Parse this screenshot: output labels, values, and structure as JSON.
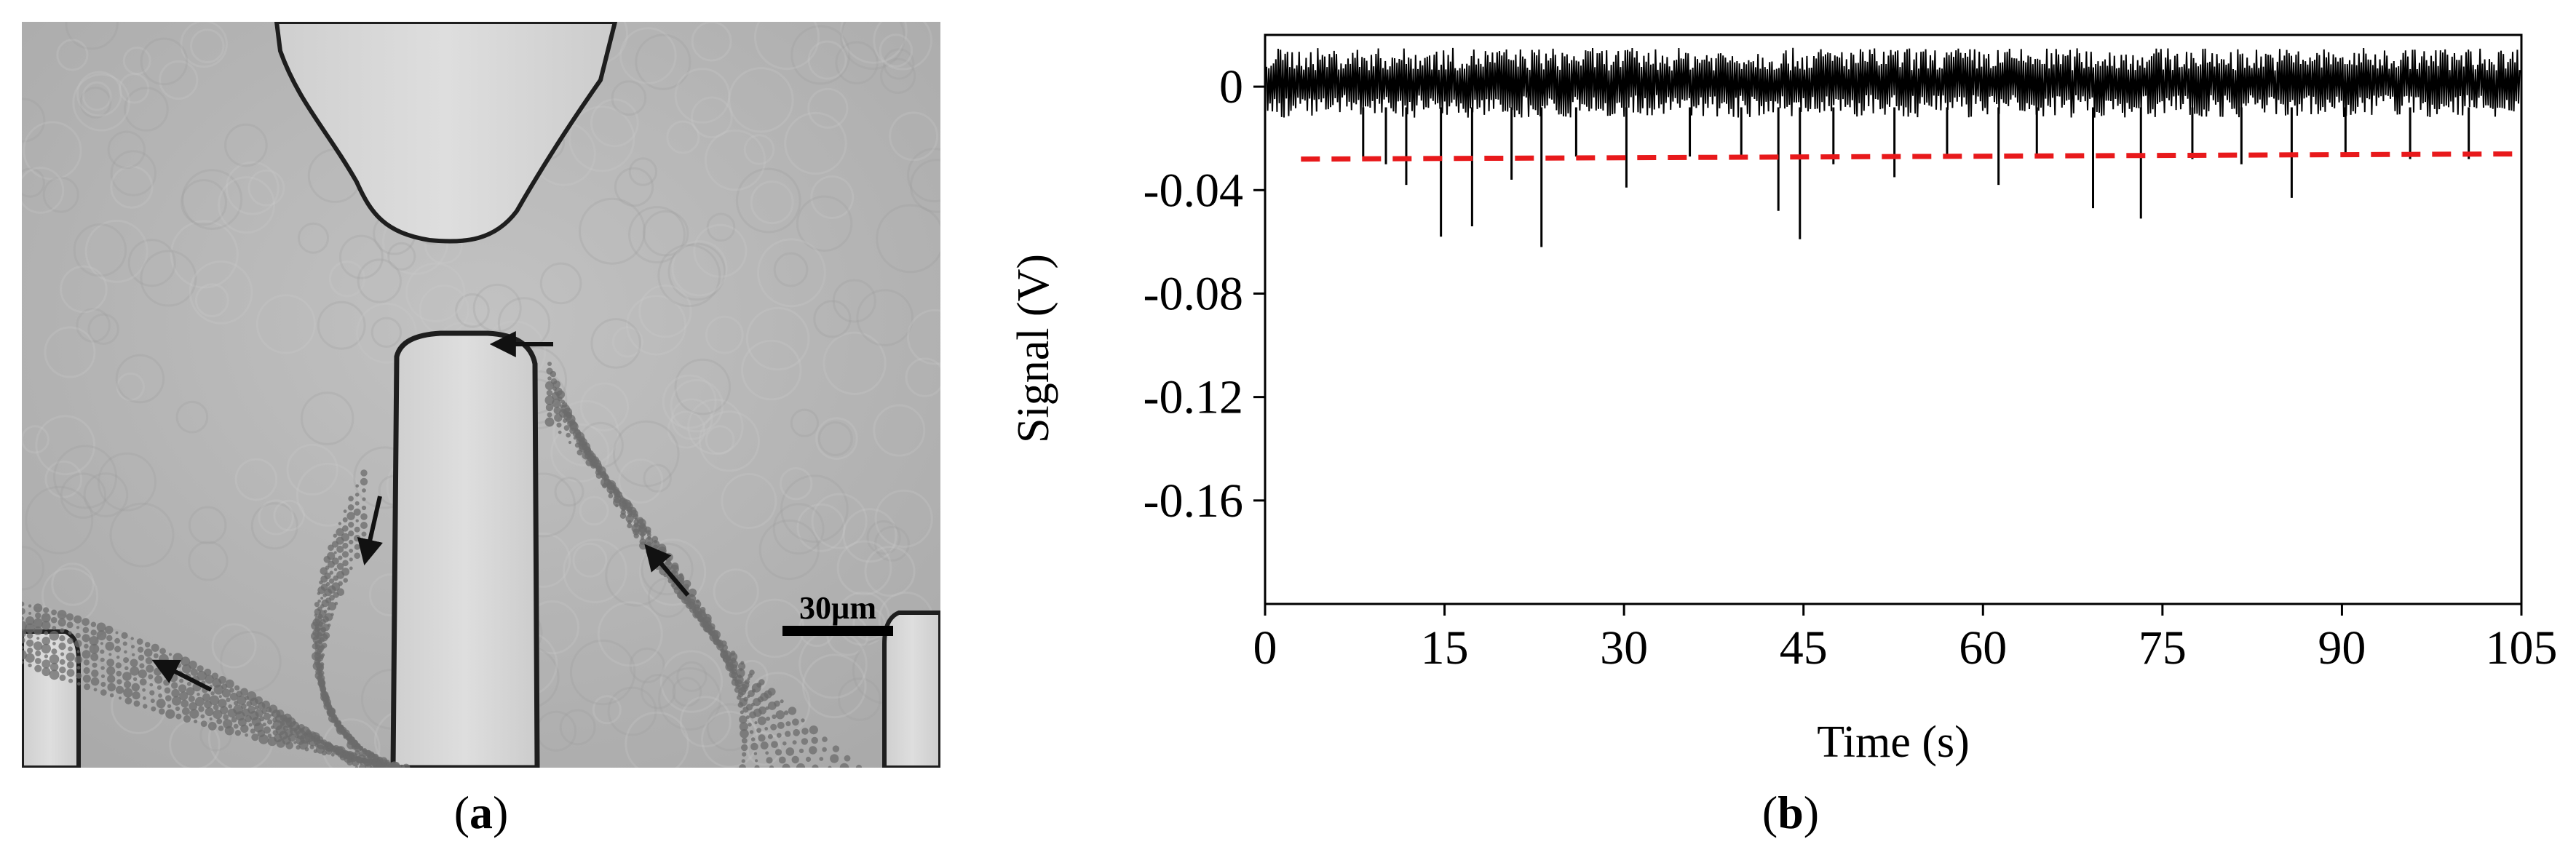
{
  "panel_a": {
    "label_open": "(",
    "label_letter": "a",
    "label_close": ")",
    "scale_bar_text": "30µm"
  },
  "panel_b": {
    "label_open": "(",
    "label_letter": "b",
    "label_close": ")"
  },
  "chart_data": {
    "type": "line",
    "xlabel": "Time (s)",
    "ylabel": "Signal (V)",
    "xlim": [
      0,
      105
    ],
    "ylim": [
      -0.2,
      0.02
    ],
    "xticks": [
      0,
      15,
      30,
      45,
      60,
      75,
      90,
      105
    ],
    "yticks": [
      0,
      -0.04,
      -0.08,
      -0.12,
      -0.16
    ],
    "ytick_labels": [
      "0",
      "-0.04",
      "-0.08",
      "-0.12",
      "-0.16"
    ],
    "grid": false,
    "colors": {
      "signal": "#000000",
      "threshold": "#e8191b"
    },
    "noise_band": [
      -0.012,
      0.015
    ],
    "threshold": {
      "style": "dashed",
      "x": [
        3,
        105
      ],
      "y": [
        -0.028,
        -0.026
      ]
    },
    "spikes": [
      {
        "x": 8.2,
        "y": -0.027
      },
      {
        "x": 10.1,
        "y": -0.03
      },
      {
        "x": 11.8,
        "y": -0.038
      },
      {
        "x": 14.7,
        "y": -0.058
      },
      {
        "x": 17.3,
        "y": -0.054
      },
      {
        "x": 20.6,
        "y": -0.036
      },
      {
        "x": 23.1,
        "y": -0.062
      },
      {
        "x": 26.0,
        "y": -0.027
      },
      {
        "x": 30.2,
        "y": -0.039
      },
      {
        "x": 35.5,
        "y": -0.027
      },
      {
        "x": 39.8,
        "y": -0.028
      },
      {
        "x": 42.9,
        "y": -0.048
      },
      {
        "x": 44.7,
        "y": -0.059
      },
      {
        "x": 47.5,
        "y": -0.03
      },
      {
        "x": 52.6,
        "y": -0.035
      },
      {
        "x": 57.0,
        "y": -0.027
      },
      {
        "x": 61.3,
        "y": -0.038
      },
      {
        "x": 64.5,
        "y": -0.027
      },
      {
        "x": 69.2,
        "y": -0.047
      },
      {
        "x": 73.2,
        "y": -0.051
      },
      {
        "x": 77.5,
        "y": -0.028
      },
      {
        "x": 81.6,
        "y": -0.03
      },
      {
        "x": 85.8,
        "y": -0.043
      },
      {
        "x": 90.3,
        "y": -0.027
      },
      {
        "x": 95.7,
        "y": -0.028
      },
      {
        "x": 100.6,
        "y": -0.028
      }
    ]
  }
}
